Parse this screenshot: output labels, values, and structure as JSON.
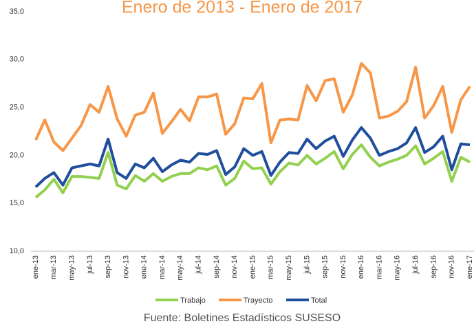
{
  "chart_data": {
    "type": "line",
    "title": "Enero de 2013 - Enero de 2017",
    "source": "Fuente: Boletines Estadísticos SUSESO",
    "categories": [
      "ene-13",
      null,
      "mar-13",
      null,
      "may-13",
      null,
      "jul-13",
      null,
      "sep-13",
      null,
      "nov-13",
      null,
      "ene-14",
      null,
      "mar-14",
      null,
      "may-14",
      null,
      "jul-14",
      null,
      "sep-14",
      null,
      "nov-14",
      null,
      "ene-15",
      null,
      "mar-15",
      null,
      "may-15",
      null,
      "jul-15",
      null,
      "sep-15",
      null,
      "nov-15",
      null,
      "ene-16",
      null,
      "mar-16",
      null,
      "may-16",
      null,
      "jul-16",
      null,
      "sep-16",
      null,
      "nov-16",
      null,
      "ene-17"
    ],
    "series": [
      {
        "name": "Trabajo",
        "color": "#92d050",
        "values": [
          15.6,
          16.4,
          17.5,
          16.1,
          17.8,
          17.8,
          17.7,
          17.6,
          20.3,
          16.9,
          16.5,
          17.9,
          17.3,
          18.1,
          17.3,
          17.8,
          18.1,
          18.1,
          18.7,
          18.5,
          18.9,
          16.9,
          17.6,
          19.4,
          18.6,
          18.7,
          17.0,
          18.3,
          19.2,
          19.0,
          20.0,
          19.1,
          19.7,
          20.4,
          18.6,
          20.1,
          21.1,
          19.8,
          18.9,
          19.3,
          19.6,
          20.0,
          21.0,
          19.1,
          19.7,
          20.4,
          17.3,
          19.8,
          19.3
        ]
      },
      {
        "name": "Trayecto",
        "color": "#f79646",
        "values": [
          21.6,
          23.7,
          21.4,
          20.5,
          21.8,
          23.1,
          25.3,
          24.5,
          27.2,
          23.8,
          22.0,
          24.2,
          24.5,
          26.5,
          22.3,
          23.5,
          24.8,
          23.6,
          26.1,
          26.1,
          26.4,
          22.2,
          23.3,
          26.0,
          25.9,
          27.5,
          21.3,
          23.7,
          23.8,
          23.7,
          27.3,
          25.7,
          27.8,
          28.0,
          24.5,
          26.3,
          29.6,
          28.6,
          23.9,
          24.1,
          24.6,
          25.6,
          29.2,
          23.9,
          25.2,
          27.2,
          22.4,
          25.8,
          27.2
        ]
      },
      {
        "name": "Total",
        "color": "#1f4e9c",
        "values": [
          16.7,
          17.6,
          18.2,
          16.9,
          18.7,
          18.9,
          19.1,
          18.9,
          21.7,
          18.2,
          17.6,
          19.1,
          18.7,
          19.7,
          18.3,
          19.0,
          19.5,
          19.3,
          20.2,
          20.1,
          20.5,
          18.0,
          18.8,
          20.7,
          20.0,
          20.4,
          17.9,
          19.3,
          20.3,
          20.2,
          21.7,
          20.7,
          21.5,
          22.0,
          19.9,
          21.6,
          22.9,
          21.8,
          20.0,
          20.4,
          20.7,
          21.3,
          22.9,
          20.3,
          20.9,
          22.0,
          18.5,
          21.2,
          21.1
        ]
      }
    ],
    "ylim": [
      10,
      35
    ],
    "yticks": [
      {
        "value": 10,
        "label": "10,0"
      },
      {
        "value": 15,
        "label": "15,0"
      },
      {
        "value": 20,
        "label": "20,0"
      },
      {
        "value": 25,
        "label": "25,0"
      },
      {
        "value": 30,
        "label": "30,0"
      },
      {
        "value": 35,
        "label": "35,0"
      }
    ],
    "grid": false,
    "legend": "bottom"
  }
}
